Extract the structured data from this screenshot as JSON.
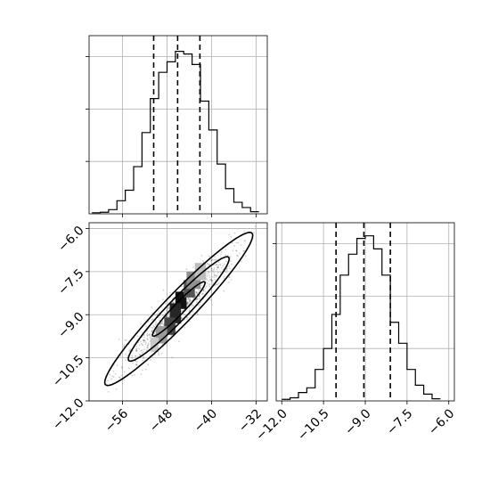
{
  "chart_data": [
    {
      "type": "histogram",
      "panel": "top-left",
      "x_range": [
        -62,
        -30
      ],
      "y_range": [
        0,
        3400
      ],
      "x_ticks": [
        -56,
        -48,
        -40,
        -32
      ],
      "y_tick_positions": [
        1000,
        2000,
        3000
      ],
      "bin_edges": [
        -61.5,
        -60,
        -58.5,
        -57,
        -55.5,
        -54,
        -52.5,
        -51,
        -49.5,
        -48,
        -46.5,
        -45,
        -43.5,
        -42,
        -40.5,
        -39,
        -37.5,
        -36,
        -34.5,
        -33,
        -31.5
      ],
      "counts": [
        20,
        30,
        80,
        250,
        450,
        900,
        1550,
        2200,
        2700,
        2900,
        3100,
        3050,
        2850,
        2150,
        1600,
        950,
        480,
        220,
        120,
        40
      ],
      "quantiles": [
        -50.4,
        -46.1,
        -42.1
      ],
      "grid": true
    },
    {
      "type": "heatmap",
      "panel": "bottom-left",
      "x_range": [
        -62,
        -30
      ],
      "y_range": [
        -12,
        -5.8
      ],
      "x_ticks": [
        -56,
        -48,
        -40,
        -32
      ],
      "x_tick_labels": [
        "−56",
        "−48",
        "−40",
        "−32"
      ],
      "y_ticks": [
        -6.0,
        -7.5,
        -9.0,
        -10.5,
        -12.0
      ],
      "y_tick_labels": [
        "−6.0",
        "−7.5",
        "−9.0",
        "−10.5",
        "−12.0"
      ],
      "density_center": [
        -45.9,
        -8.8
      ],
      "cells": [
        {
          "x": [
            -46.5,
            -44.5
          ],
          "y": [
            -8.8,
            -8.2
          ],
          "shade": "#111111"
        },
        {
          "x": [
            -47.5,
            -45.5
          ],
          "y": [
            -9.3,
            -8.6
          ],
          "shade": "#262626"
        },
        {
          "x": [
            -48.5,
            -46.5
          ],
          "y": [
            -9.7,
            -9.1
          ],
          "shade": "#444444"
        },
        {
          "x": [
            -45.0,
            -43.0
          ],
          "y": [
            -8.4,
            -7.8
          ],
          "shade": "#555555"
        },
        {
          "x": [
            -44.5,
            -42.0
          ],
          "y": [
            -8.1,
            -7.5
          ],
          "shade": "#909090"
        },
        {
          "x": [
            -50.0,
            -48.0
          ],
          "y": [
            -10.0,
            -9.4
          ],
          "shade": "#9a9a9a"
        },
        {
          "x": [
            -43.0,
            -41.0
          ],
          "y": [
            -7.8,
            -7.2
          ],
          "shade": "#bdbdbd"
        },
        {
          "x": [
            -51.0,
            -49.5
          ],
          "y": [
            -10.3,
            -9.8
          ],
          "shade": "#c8c8c8"
        }
      ],
      "contours": [
        {
          "center": [
            -45.9,
            -8.8
          ],
          "semi_major": 13.5,
          "semi_minor": 0.55,
          "slope": 0.197
        },
        {
          "center": [
            -45.9,
            -8.8
          ],
          "semi_major": 9.2,
          "semi_minor": 0.38,
          "slope": 0.197
        },
        {
          "center": [
            -45.9,
            -8.8
          ],
          "semi_major": 4.8,
          "semi_minor": 0.2,
          "slope": 0.197
        }
      ],
      "grid": true
    },
    {
      "type": "histogram",
      "panel": "bottom-right",
      "x_range": [
        -12.2,
        -5.8
      ],
      "y_range": [
        0,
        3400
      ],
      "x_ticks": [
        -12.0,
        -10.5,
        -9.0,
        -7.5,
        -6.0
      ],
      "x_tick_labels": [
        "−12.0",
        "−10.5",
        "−9.0",
        "−7.5",
        "−6.0"
      ],
      "y_tick_positions": [
        1000,
        2000,
        3000
      ],
      "bin_edges": [
        -12.0,
        -11.7,
        -11.4,
        -11.1,
        -10.8,
        -10.5,
        -10.2,
        -9.9,
        -9.6,
        -9.3,
        -9.0,
        -8.7,
        -8.4,
        -8.1,
        -7.8,
        -7.5,
        -7.2,
        -6.9,
        -6.6,
        -6.3
      ],
      "counts": [
        30,
        60,
        160,
        250,
        600,
        1000,
        1650,
        2400,
        2800,
        3100,
        3150,
        2900,
        2400,
        1500,
        1100,
        600,
        300,
        130,
        40
      ],
      "quantiles": [
        -10.05,
        -9.05,
        -8.1
      ],
      "grid": true
    }
  ]
}
